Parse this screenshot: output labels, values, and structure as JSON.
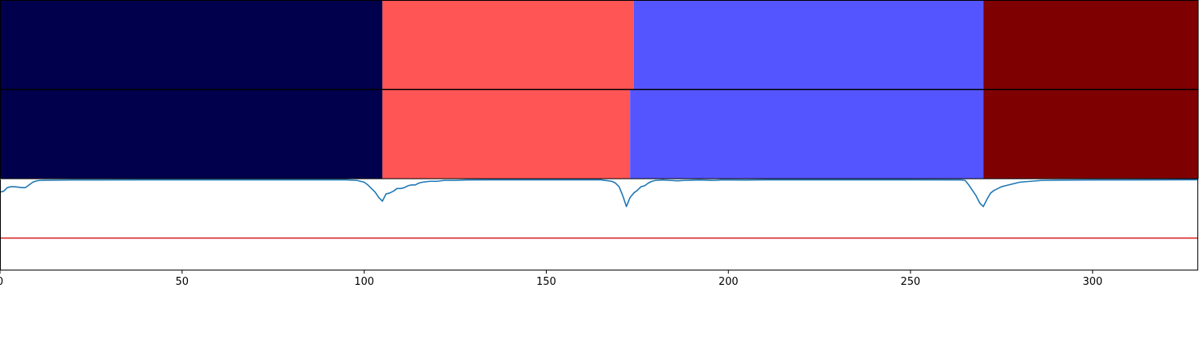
{
  "chart_data": {
    "type": "line",
    "x_ticks": [
      0,
      50,
      100,
      150,
      200,
      250,
      300
    ],
    "xlim": [
      0,
      329
    ],
    "segment_colors": {
      "0": "#00004c",
      "1": "#ff5555",
      "2": "#5555ff",
      "3": "#7f0000"
    },
    "segment_tracks": [
      {
        "segments": [
          {
            "start": 0,
            "end": 105,
            "class": 0
          },
          {
            "start": 105,
            "end": 174,
            "class": 1
          },
          {
            "start": 174,
            "end": 270,
            "class": 2
          },
          {
            "start": 270,
            "end": 329,
            "class": 3
          }
        ]
      },
      {
        "segments": [
          {
            "start": 0,
            "end": 105,
            "class": 0
          },
          {
            "start": 105,
            "end": 173,
            "class": 1
          },
          {
            "start": 173,
            "end": 270,
            "class": 2
          },
          {
            "start": 270,
            "end": 329,
            "class": 3
          }
        ]
      }
    ],
    "line_ylim": [
      0,
      1
    ],
    "line_series": {
      "color": "#1f77b4",
      "points": [
        [
          0,
          0.86
        ],
        [
          1,
          0.87
        ],
        [
          2,
          0.91
        ],
        [
          3,
          0.92
        ],
        [
          4,
          0.92
        ],
        [
          5,
          0.915
        ],
        [
          6,
          0.91
        ],
        [
          7,
          0.91
        ],
        [
          8,
          0.94
        ],
        [
          9,
          0.97
        ],
        [
          10,
          0.985
        ],
        [
          11,
          0.99
        ],
        [
          12,
          0.992
        ],
        [
          14,
          0.993
        ],
        [
          20,
          0.995
        ],
        [
          40,
          0.996
        ],
        [
          60,
          0.996
        ],
        [
          80,
          0.996
        ],
        [
          95,
          0.996
        ],
        [
          98,
          0.99
        ],
        [
          100,
          0.97
        ],
        [
          101,
          0.94
        ],
        [
          102,
          0.9
        ],
        [
          103,
          0.86
        ],
        [
          104,
          0.8
        ],
        [
          105,
          0.76
        ],
        [
          106,
          0.84
        ],
        [
          107,
          0.85
        ],
        [
          108,
          0.87
        ],
        [
          109,
          0.9
        ],
        [
          110,
          0.9
        ],
        [
          111,
          0.91
        ],
        [
          112,
          0.93
        ],
        [
          113,
          0.94
        ],
        [
          114,
          0.94
        ],
        [
          115,
          0.96
        ],
        [
          116,
          0.97
        ],
        [
          118,
          0.98
        ],
        [
          120,
          0.98
        ],
        [
          122,
          0.99
        ],
        [
          125,
          0.99
        ],
        [
          128,
          0.995
        ],
        [
          135,
          0.996
        ],
        [
          150,
          0.996
        ],
        [
          165,
          0.996
        ],
        [
          168,
          0.98
        ],
        [
          169,
          0.96
        ],
        [
          170,
          0.92
        ],
        [
          171,
          0.82
        ],
        [
          172,
          0.7
        ],
        [
          173,
          0.8
        ],
        [
          174,
          0.85
        ],
        [
          175,
          0.88
        ],
        [
          176,
          0.92
        ],
        [
          177,
          0.93
        ],
        [
          178,
          0.96
        ],
        [
          179,
          0.98
        ],
        [
          180,
          0.99
        ],
        [
          182,
          0.995
        ],
        [
          184,
          0.99
        ],
        [
          186,
          0.985
        ],
        [
          188,
          0.99
        ],
        [
          190,
          0.993
        ],
        [
          192,
          0.995
        ],
        [
          194,
          0.993
        ],
        [
          196,
          0.99
        ],
        [
          198,
          0.995
        ],
        [
          200,
          0.995
        ],
        [
          205,
          0.994
        ],
        [
          210,
          0.996
        ],
        [
          230,
          0.996
        ],
        [
          250,
          0.996
        ],
        [
          264,
          0.995
        ],
        [
          265,
          0.99
        ],
        [
          266,
          0.94
        ],
        [
          267,
          0.88
        ],
        [
          268,
          0.82
        ],
        [
          269,
          0.74
        ],
        [
          270,
          0.7
        ],
        [
          271,
          0.78
        ],
        [
          272,
          0.85
        ],
        [
          273,
          0.88
        ],
        [
          274,
          0.9
        ],
        [
          275,
          0.92
        ],
        [
          276,
          0.93
        ],
        [
          278,
          0.95
        ],
        [
          280,
          0.97
        ],
        [
          283,
          0.98
        ],
        [
          286,
          0.99
        ],
        [
          290,
          0.993
        ],
        [
          300,
          0.995
        ],
        [
          320,
          0.996
        ],
        [
          329,
          0.997
        ]
      ]
    },
    "threshold_line": {
      "y": 0.35,
      "color": "#d62728"
    }
  }
}
